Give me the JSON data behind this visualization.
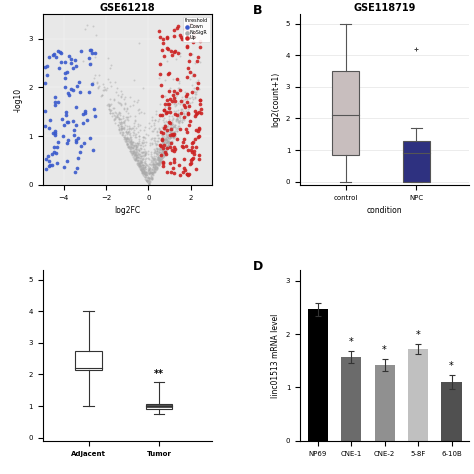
{
  "panel_A": {
    "title": "GSE61218",
    "xlabel": "log2FC",
    "ylabel": "-log10",
    "xlim": [
      -5,
      3
    ],
    "ylim": [
      0,
      3.5
    ],
    "yticks": [
      0,
      1,
      2,
      3
    ],
    "xticks": [
      -4,
      -2,
      0,
      2
    ],
    "bg_color": "#e8e8e8"
  },
  "panel_B": {
    "title": "GSE118719",
    "xlabel": "condition",
    "ylabel": "log2(count+1)",
    "control": {
      "whisker_low": 0.0,
      "q1": 0.85,
      "median": 2.1,
      "q3": 3.5,
      "whisker_high": 5.0,
      "color": "#c8bebe"
    },
    "npc": {
      "whisker_low": 0.0,
      "q1": 0.0,
      "median": 0.9,
      "q3": 1.3,
      "whisker_high": 1.7,
      "flier_high": 4.2,
      "color": "#2e3180"
    },
    "yticks": [
      0,
      1,
      2,
      3,
      4,
      5
    ],
    "ylim": [
      -0.1,
      5.3
    ]
  },
  "panel_C": {
    "adjacent": {
      "whisker_low": 1.0,
      "q1": 2.15,
      "median": 2.2,
      "q3": 2.75,
      "whisker_high": 4.0
    },
    "tumor": {
      "whisker_low": 0.75,
      "q1": 0.92,
      "median": 1.0,
      "q3": 1.08,
      "whisker_high": 1.75
    },
    "annotation": "**",
    "yticks": [
      0,
      1,
      2,
      3,
      4,
      5
    ],
    "ylim": [
      -0.1,
      5.3
    ],
    "xtick_labels": [
      "Adjacent",
      "Tumor"
    ]
  },
  "panel_D": {
    "ylabel": "linc01513 mRNA level",
    "categories": [
      "NP69",
      "CNE-1",
      "CNE-2",
      "5-8F",
      "6-10B"
    ],
    "values": [
      2.47,
      1.57,
      1.42,
      1.72,
      1.1
    ],
    "errors": [
      0.12,
      0.12,
      0.12,
      0.1,
      0.13
    ],
    "colors": [
      "#000000",
      "#6b6b6b",
      "#909090",
      "#c0c0c0",
      "#505050"
    ],
    "annotation": "*",
    "ylim": [
      0,
      3.2
    ],
    "yticks": [
      0,
      1,
      2,
      3
    ]
  },
  "volcano": {
    "seed": 99,
    "legend_labels": [
      "Down",
      "NoSigR",
      "Up"
    ],
    "legend_colors": [
      "#3a5acc",
      "#aaaaaa",
      "#cc2222"
    ],
    "threshold_label": "threshold"
  }
}
